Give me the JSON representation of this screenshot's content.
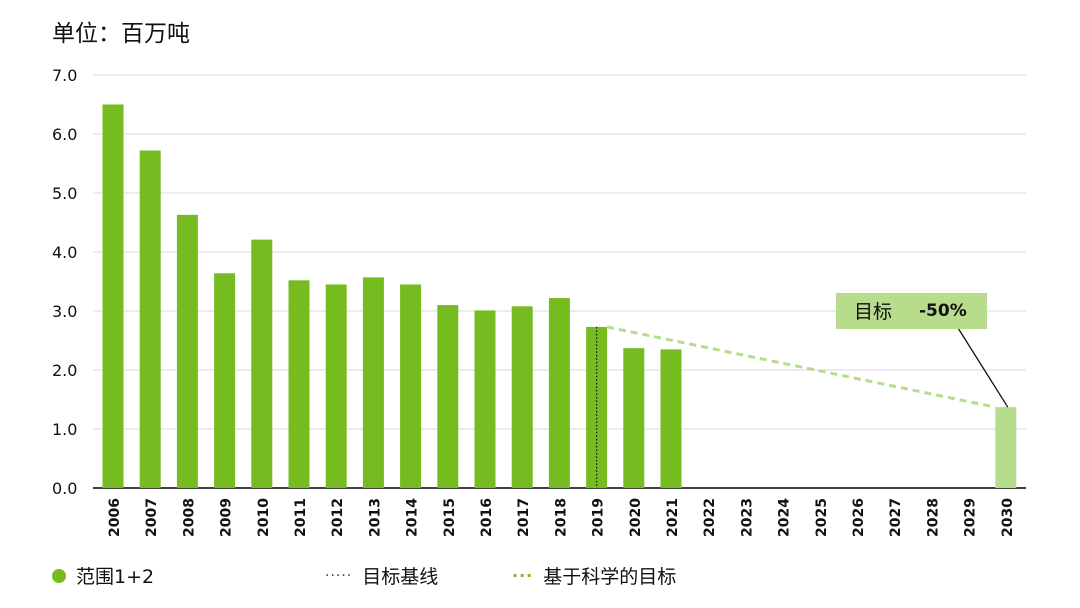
{
  "unit_label": "单位：百万吨",
  "colors": {
    "bar": "#76bc21",
    "target_bar": "#b7dc8c",
    "target_line": "#b7dc8c",
    "target_box": "#b7dc8c",
    "grid": "#d8d8d8",
    "axis": "#000000"
  },
  "chart_data": {
    "type": "bar",
    "categories": [
      "2006",
      "2007",
      "2008",
      "2009",
      "2010",
      "2011",
      "2012",
      "2013",
      "2014",
      "2015",
      "2016",
      "2017",
      "2018",
      "2019",
      "2020",
      "2021",
      "2022",
      "2023",
      "2024",
      "2025",
      "2026",
      "2027",
      "2028",
      "2029",
      "2030"
    ],
    "series": [
      {
        "name": "范围1+2",
        "values": [
          6.5,
          5.72,
          4.63,
          3.64,
          4.21,
          3.52,
          3.45,
          3.57,
          3.45,
          3.1,
          3.01,
          3.08,
          3.22,
          2.73,
          2.37,
          2.35,
          null,
          null,
          null,
          null,
          null,
          null,
          null,
          null,
          null
        ]
      }
    ],
    "target_bar": {
      "category": "2030",
      "value": 1.37
    },
    "baseline": {
      "category": "2019",
      "value": 2.73
    },
    "science_based_target_line": {
      "from": {
        "x": "2019",
        "y": 2.73
      },
      "to": {
        "x": "2030",
        "y": 1.37
      }
    },
    "ylim": [
      0,
      7
    ],
    "yticks": [
      "0.0",
      "1.0",
      "2.0",
      "3.0",
      "4.0",
      "5.0",
      "6.0",
      "7.0"
    ],
    "annotation": {
      "label": "目标",
      "value": "-50%",
      "points_to": "2030"
    },
    "grid": true,
    "legend_position": "bottom"
  },
  "legend": {
    "scope": "范围1+2",
    "baseline": "目标基线",
    "baseline_marker": "·····",
    "science_target": "基于科学的目标",
    "science_target_marker": "···"
  }
}
